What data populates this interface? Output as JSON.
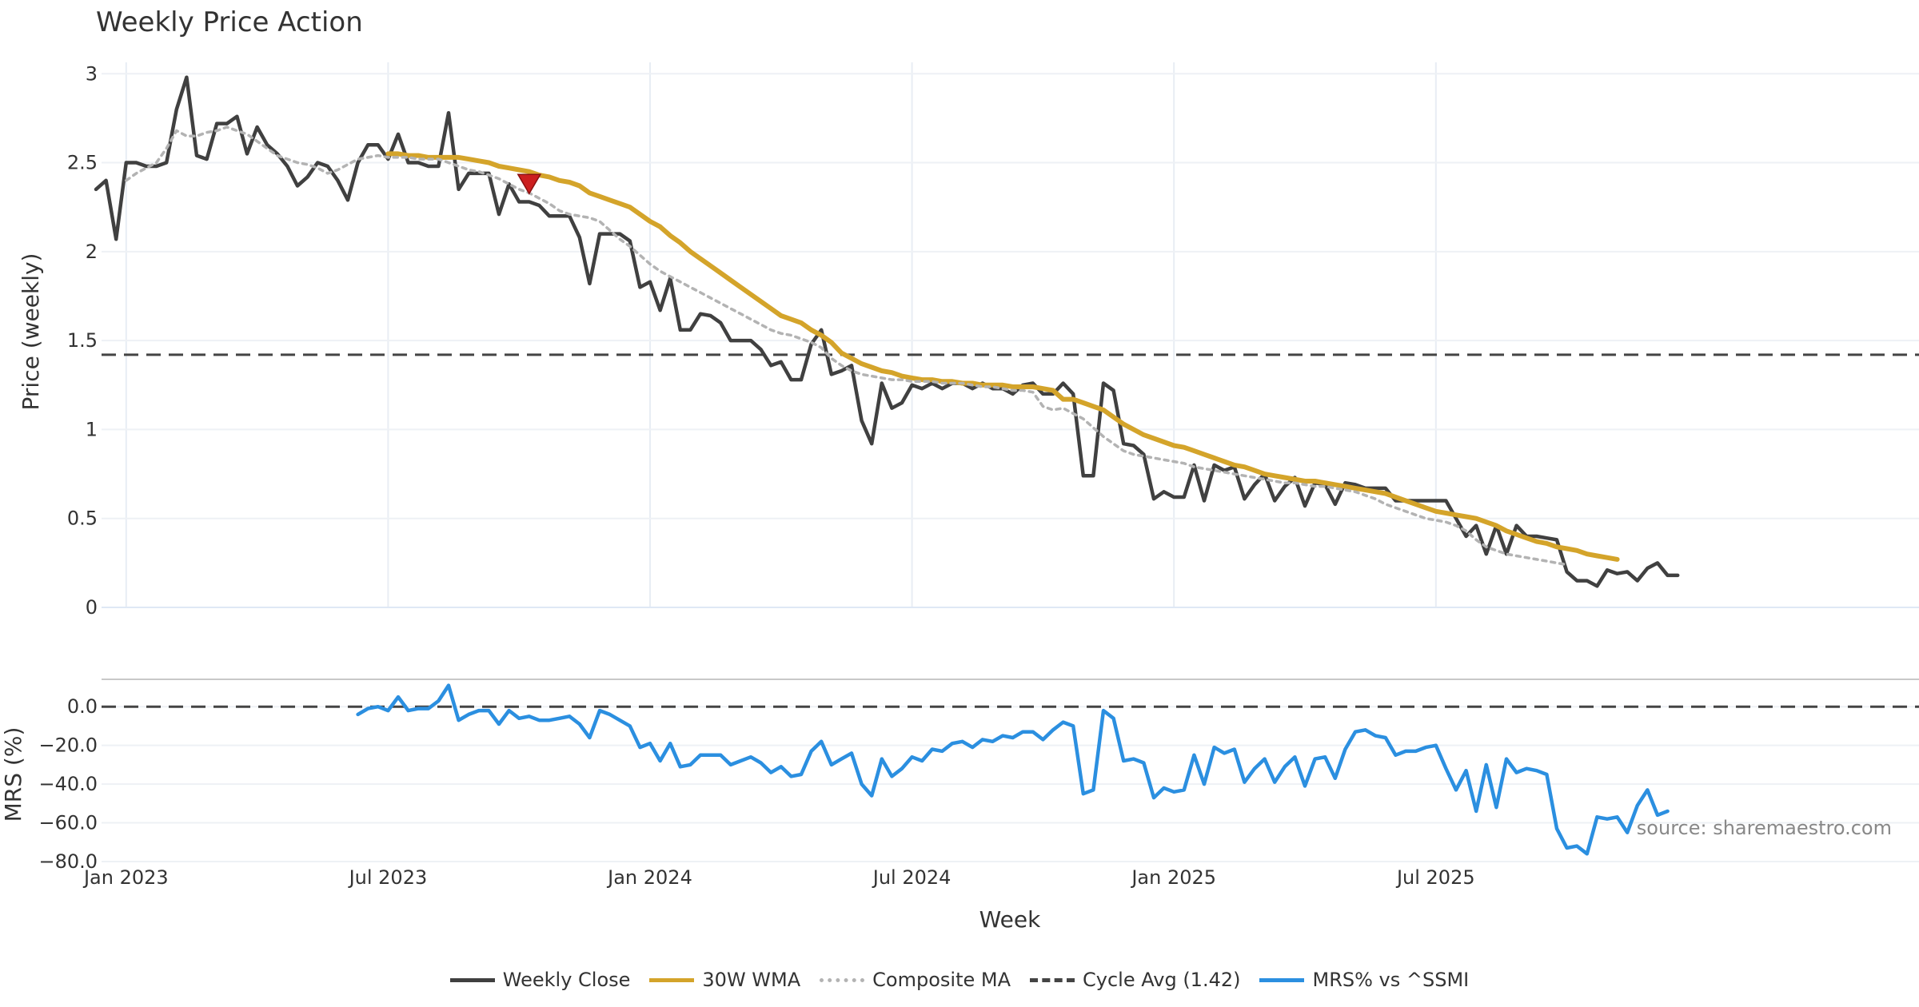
{
  "chart_data": {
    "type": "line",
    "title": "Weekly Price Action",
    "xlabel": "Week",
    "x_ticks": [
      "Jan 2023",
      "Jul 2023",
      "Jan 2024",
      "Jul 2024",
      "Jan 2025",
      "Jul 2025"
    ],
    "panels": [
      {
        "name": "price",
        "ylabel": "Price (weekly)",
        "ylim": [
          0,
          3.1
        ],
        "y_ticks": [
          0,
          0.5,
          1,
          1.5,
          2,
          2.5,
          3
        ],
        "y_tick_labels": [
          "0",
          "0.5",
          "1",
          "1.5",
          "2",
          "2.5",
          "3"
        ],
        "series": [
          {
            "name": "Weekly Close",
            "color": "#404040",
            "style": "solid",
            "start_week": 0,
            "values": [
              2.35,
              2.4,
              2.07,
              2.5,
              2.5,
              2.48,
              2.48,
              2.5,
              2.8,
              2.98,
              2.54,
              2.52,
              2.72,
              2.72,
              2.76,
              2.55,
              2.7,
              2.6,
              2.55,
              2.48,
              2.37,
              2.42,
              2.5,
              2.48,
              2.4,
              2.29,
              2.5,
              2.6,
              2.6,
              2.52,
              2.66,
              2.5,
              2.5,
              2.48,
              2.48,
              2.78,
              2.35,
              2.44,
              2.44,
              2.44,
              2.21,
              2.38,
              2.28,
              2.28,
              2.26,
              2.2,
              2.2,
              2.2,
              2.08,
              1.82,
              2.1,
              2.1,
              2.1,
              2.06,
              1.8,
              1.83,
              1.67,
              1.85,
              1.56,
              1.56,
              1.65,
              1.64,
              1.6,
              1.5,
              1.5,
              1.5,
              1.45,
              1.36,
              1.38,
              1.28,
              1.28,
              1.48,
              1.56,
              1.31,
              1.33,
              1.36,
              1.05,
              0.92,
              1.26,
              1.12,
              1.15,
              1.25,
              1.23,
              1.26,
              1.23,
              1.26,
              1.26,
              1.23,
              1.26,
              1.23,
              1.23,
              1.2,
              1.25,
              1.26,
              1.2,
              1.2,
              1.26,
              1.2,
              0.74,
              0.74,
              1.26,
              1.22,
              0.92,
              0.91,
              0.86,
              0.61,
              0.65,
              0.62,
              0.62,
              0.8,
              0.6,
              0.8,
              0.77,
              0.79,
              0.61,
              0.69,
              0.75,
              0.6,
              0.68,
              0.73,
              0.57,
              0.7,
              0.69,
              0.58,
              0.7,
              0.69,
              0.67,
              0.67,
              0.67,
              0.6,
              0.6,
              0.6,
              0.6,
              0.6,
              0.6,
              0.5,
              0.4,
              0.46,
              0.3,
              0.46,
              0.3,
              0.46,
              0.4,
              0.4,
              0.39,
              0.38,
              0.2,
              0.15,
              0.15,
              0.12,
              0.21,
              0.19,
              0.2,
              0.15,
              0.22,
              0.25,
              0.18,
              0.18
            ]
          },
          {
            "name": "30W WMA",
            "color": "#d4a42a",
            "style": "solid",
            "start_week": 29,
            "values": [
              2.55,
              2.55,
              2.54,
              2.54,
              2.53,
              2.53,
              2.53,
              2.53,
              2.52,
              2.51,
              2.5,
              2.48,
              2.47,
              2.46,
              2.45,
              2.43,
              2.42,
              2.4,
              2.39,
              2.37,
              2.33,
              2.31,
              2.29,
              2.27,
              2.25,
              2.21,
              2.17,
              2.14,
              2.09,
              2.05,
              2.0,
              1.96,
              1.92,
              1.88,
              1.84,
              1.8,
              1.76,
              1.72,
              1.68,
              1.64,
              1.62,
              1.6,
              1.56,
              1.53,
              1.49,
              1.43,
              1.4,
              1.37,
              1.35,
              1.33,
              1.32,
              1.3,
              1.29,
              1.28,
              1.28,
              1.27,
              1.27,
              1.26,
              1.26,
              1.25,
              1.25,
              1.25,
              1.24,
              1.24,
              1.24,
              1.23,
              1.22,
              1.17,
              1.17,
              1.15,
              1.13,
              1.11,
              1.07,
              1.03,
              1.0,
              0.97,
              0.95,
              0.93,
              0.91,
              0.9,
              0.88,
              0.86,
              0.84,
              0.82,
              0.8,
              0.79,
              0.77,
              0.75,
              0.74,
              0.73,
              0.72,
              0.71,
              0.71,
              0.7,
              0.69,
              0.68,
              0.67,
              0.66,
              0.65,
              0.64,
              0.62,
              0.6,
              0.58,
              0.56,
              0.54,
              0.53,
              0.52,
              0.51,
              0.5,
              0.48,
              0.46,
              0.43,
              0.41,
              0.39,
              0.37,
              0.36,
              0.34,
              0.33,
              0.32,
              0.3,
              0.29,
              0.28,
              0.27
            ]
          },
          {
            "name": "Composite MA",
            "color": "#b3b3b3",
            "style": "dotted",
            "start_week": 3,
            "values": [
              2.4,
              2.44,
              2.47,
              2.5,
              2.58,
              2.68,
              2.65,
              2.65,
              2.67,
              2.68,
              2.7,
              2.68,
              2.66,
              2.62,
              2.58,
              2.54,
              2.52,
              2.5,
              2.49,
              2.47,
              2.44,
              2.46,
              2.49,
              2.52,
              2.53,
              2.54,
              2.53,
              2.53,
              2.53,
              2.52,
              2.52,
              2.52,
              2.5,
              2.48,
              2.46,
              2.45,
              2.43,
              2.41,
              2.38,
              2.35,
              2.33,
              2.3,
              2.27,
              2.23,
              2.21,
              2.2,
              2.19,
              2.17,
              2.12,
              2.07,
              2.03,
              1.98,
              1.93,
              1.89,
              1.86,
              1.83,
              1.8,
              1.77,
              1.74,
              1.71,
              1.68,
              1.65,
              1.62,
              1.59,
              1.56,
              1.54,
              1.53,
              1.51,
              1.49,
              1.46,
              1.4,
              1.36,
              1.33,
              1.31,
              1.3,
              1.29,
              1.28,
              1.28,
              1.27,
              1.27,
              1.27,
              1.26,
              1.26,
              1.26,
              1.25,
              1.24,
              1.24,
              1.23,
              1.22,
              1.22,
              1.21,
              1.13,
              1.11,
              1.12,
              1.09,
              1.06,
              1.01,
              0.96,
              0.92,
              0.88,
              0.86,
              0.85,
              0.84,
              0.83,
              0.82,
              0.81,
              0.79,
              0.78,
              0.77,
              0.76,
              0.75,
              0.74,
              0.73,
              0.72,
              0.71,
              0.7,
              0.7,
              0.69,
              0.68,
              0.68,
              0.67,
              0.66,
              0.65,
              0.63,
              0.61,
              0.58,
              0.56,
              0.54,
              0.52,
              0.5,
              0.49,
              0.48,
              0.46,
              0.43,
              0.38,
              0.34,
              0.32,
              0.3,
              0.29,
              0.28,
              0.27,
              0.26,
              0.25,
              0.24
            ]
          }
        ],
        "reference_line": {
          "name": "Cycle Avg (1.42)",
          "value": 1.42,
          "color": "#444444",
          "style": "dashed"
        },
        "markers": [
          {
            "type": "sell-triangle",
            "week": 43,
            "value": 2.38,
            "color": "#cc1f1f"
          }
        ]
      },
      {
        "name": "mrs",
        "ylabel": "MRS (%)",
        "ylim": [
          -80,
          10
        ],
        "y_ticks": [
          0,
          -20,
          -40,
          -60,
          -80
        ],
        "y_tick_labels": [
          "0.0",
          "−20.0",
          "−40.0",
          "−60.0",
          "−80.0"
        ],
        "series": [
          {
            "name": "MRS% vs ^SSMI",
            "color": "#2b8fe0",
            "style": "solid",
            "start_week": 26,
            "values": [
              -4,
              -1,
              0,
              -2,
              5,
              -2,
              -1,
              -1,
              3,
              11,
              -7,
              -4,
              -2,
              -2,
              -9,
              -2,
              -6,
              -5,
              -7,
              -7,
              -6,
              -5,
              -9,
              -16,
              -2,
              -4,
              -7,
              -10,
              -21,
              -19,
              -28,
              -19,
              -31,
              -30,
              -25,
              -25,
              -25,
              -30,
              -28,
              -26,
              -29,
              -34,
              -31,
              -36,
              -35,
              -23,
              -18,
              -30,
              -27,
              -24,
              -40,
              -46,
              -27,
              -36,
              -32,
              -26,
              -28,
              -22,
              -23,
              -19,
              -18,
              -21,
              -17,
              -18,
              -15,
              -16,
              -13,
              -13,
              -17,
              -12,
              -8,
              -10,
              -45,
              -43,
              -2,
              -6,
              -28,
              -27,
              -29,
              -47,
              -42,
              -44,
              -43,
              -25,
              -40,
              -21,
              -24,
              -22,
              -39,
              -32,
              -27,
              -39,
              -31,
              -26,
              -41,
              -27,
              -26,
              -37,
              -22,
              -13,
              -12,
              -15,
              -16,
              -25,
              -23,
              -23,
              -21,
              -20,
              -32,
              -43,
              -33,
              -54,
              -30,
              -52,
              -27,
              -34,
              -32,
              -33,
              -35,
              -63,
              -73,
              -72,
              -76,
              -57,
              -58,
              -57,
              -65,
              -51,
              -43,
              -56,
              -54
            ]
          }
        ],
        "reference_line": {
          "value": 0,
          "color": "#444444",
          "style": "dashed"
        }
      }
    ],
    "source_note": "source: sharemaestro.com",
    "legend": {
      "position": "bottom-center",
      "entries": [
        {
          "label": "Weekly Close",
          "color": "#404040",
          "style": "solid"
        },
        {
          "label": "30W WMA",
          "color": "#d4a42a",
          "style": "solid"
        },
        {
          "label": "Composite MA",
          "color": "#b3b3b3",
          "style": "dotted"
        },
        {
          "label": "Cycle Avg (1.42)",
          "color": "#444444",
          "style": "dashed"
        },
        {
          "label": "MRS% vs ^SSMI",
          "color": "#2b8fe0",
          "style": "solid"
        }
      ]
    }
  }
}
